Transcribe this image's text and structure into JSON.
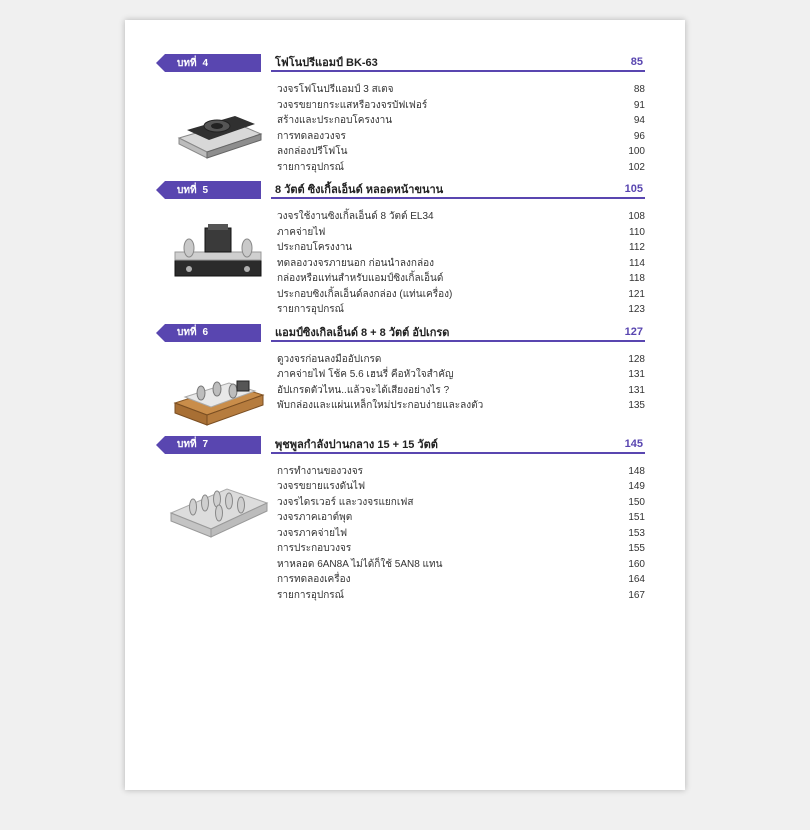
{
  "chapter_label": "บทที่",
  "tab_bg": "#5946b0",
  "chapters": [
    {
      "num": "4",
      "title": "โฟโนปรีแอมป์ BK-63",
      "page": "85",
      "thumb": "preamp-box",
      "entries": [
        {
          "text": "วงจรโฟโนปรีแอมป์ 3 สเตจ",
          "page": "88"
        },
        {
          "text": "วงจรขยายกระแสหรือวงจรบัฟเฟอร์",
          "page": "91"
        },
        {
          "text": "สร้างและประกอบโครงงาน",
          "page": "94"
        },
        {
          "text": "การทดลองวงจร",
          "page": "96"
        },
        {
          "text": "ลงกล่องปรีโฟโน",
          "page": "100"
        },
        {
          "text": "รายการอุปกรณ์",
          "page": "102"
        }
      ]
    },
    {
      "num": "5",
      "title": "8 วัตต์ ซิงเกิ้ลเอ็นด์ หลอดหน้าขนาน",
      "page": "105",
      "thumb": "single-ended",
      "entries": [
        {
          "text": "วงจรใช้งานซิงเกิ้ลเอ็นด์ 8 วัตต์ EL34",
          "page": "108"
        },
        {
          "text": "ภาคจ่ายไฟ",
          "page": "110"
        },
        {
          "text": "ประกอบโครงงาน",
          "page": "112"
        },
        {
          "text": "ทดลองวงจรภายนอก ก่อนนำลงกล่อง",
          "page": "114"
        },
        {
          "text": "กล่องหรือแท่นสำหรับแอมป์ซิงเกิ้ลเอ็นด์",
          "page": "118"
        },
        {
          "text": "ประกอบซิงเกิ้ลเอ็นด์ลงกล่อง (แท่นเครื่อง)",
          "page": "121"
        },
        {
          "text": "รายการอุปกรณ์",
          "page": "123"
        }
      ]
    },
    {
      "num": "6",
      "title": "แอมป์ซิงเกิลเอ็นด์ 8 + 8 วัตต์ อัปเกรด",
      "page": "127",
      "thumb": "upgrade-amp",
      "entries": [
        {
          "text": "ดูวงจรก่อนลงมืออัปเกรด",
          "page": "128"
        },
        {
          "text": "ภาคจ่ายไฟ โช้ค 5.6 เฮนรี่ คือหัวใจสำคัญ",
          "page": "131"
        },
        {
          "text": "อัปเกรดตัวไหน..แล้วจะได้เสียงอย่างไร ?",
          "page": "131"
        },
        {
          "text": "พับกล่องและแผ่นเหล็กใหม่ประกอบง่ายและลงตัว",
          "page": "135"
        }
      ]
    },
    {
      "num": "7",
      "title": "พุชพูลกำลังปานกลาง 15 + 15 วัตต์",
      "page": "145",
      "thumb": "push-pull",
      "entries": [
        {
          "text": "การทำงานของวงจร",
          "page": "148"
        },
        {
          "text": "วงจรขยายแรงดันไฟ",
          "page": "149"
        },
        {
          "text": "วงจรไดรเวอร์ และวงจรแยกเฟส",
          "page": "150"
        },
        {
          "text": "วงจรภาคเอาต์พุต",
          "page": "151"
        },
        {
          "text": "วงจรภาคจ่ายไฟ",
          "page": "153"
        },
        {
          "text": "การประกอบวงจร",
          "page": "155"
        },
        {
          "text": "หาหลอด 6AN8A ไม่ได้ก็ใช้ 5AN8 แทน",
          "page": "160"
        },
        {
          "text": "การทดลองเครื่อง",
          "page": "164"
        },
        {
          "text": "รายการอุปกรณ์",
          "page": "167"
        }
      ]
    }
  ]
}
